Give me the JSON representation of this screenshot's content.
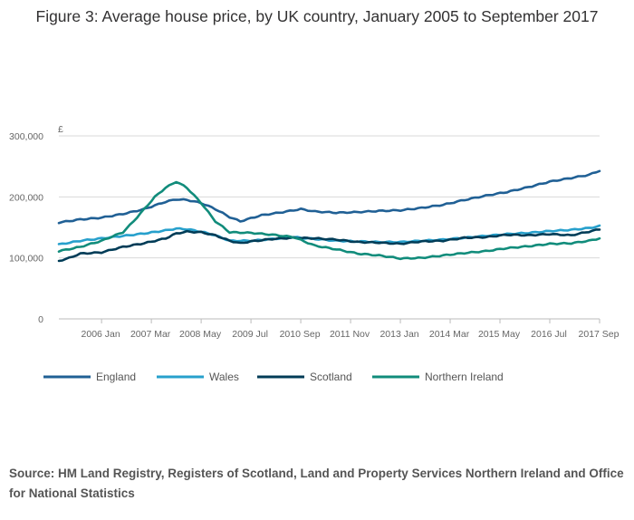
{
  "chart_data": {
    "type": "line",
    "title": "Figure 3: Average house price, by UK country, January 2005 to September 2017",
    "ylabel": "£",
    "ylim": [
      0,
      300000
    ],
    "yticks": [
      0,
      100000,
      200000,
      300000
    ],
    "ytick_labels": [
      "0",
      "100,000",
      "200,000",
      "300,000"
    ],
    "xrange": [
      "2005-01",
      "2017-09"
    ],
    "xtick_labels": [
      "2006 Jan",
      "2007 Mar",
      "2008 May",
      "2009 Jul",
      "2010 Sep",
      "2011 Nov",
      "2013 Jan",
      "2014 Mar",
      "2015 May",
      "2016 Jul",
      "2017 Sep"
    ],
    "xtick_dates": [
      "2006-01",
      "2007-03",
      "2008-05",
      "2009-07",
      "2010-09",
      "2011-11",
      "2013-01",
      "2014-03",
      "2015-05",
      "2016-07",
      "2017-09"
    ],
    "grid": "horizontal",
    "legend_position": "bottom",
    "series": [
      {
        "name": "England",
        "color": "#206095",
        "points": [
          [
            "2005-01",
            158000
          ],
          [
            "2005-07",
            163000
          ],
          [
            "2006-01",
            166000
          ],
          [
            "2006-07",
            172000
          ],
          [
            "2007-01",
            180000
          ],
          [
            "2007-07",
            192000
          ],
          [
            "2007-10",
            196000
          ],
          [
            "2008-01",
            195000
          ],
          [
            "2008-05",
            190000
          ],
          [
            "2008-09",
            180000
          ],
          [
            "2009-01",
            167000
          ],
          [
            "2009-04",
            160000
          ],
          [
            "2009-07",
            165000
          ],
          [
            "2009-10",
            170000
          ],
          [
            "2010-04",
            175000
          ],
          [
            "2010-09",
            180000
          ],
          [
            "2011-01",
            176000
          ],
          [
            "2011-07",
            174000
          ],
          [
            "2012-01",
            175000
          ],
          [
            "2012-07",
            177000
          ],
          [
            "2013-01",
            178000
          ],
          [
            "2013-07",
            182000
          ],
          [
            "2014-01",
            187000
          ],
          [
            "2014-07",
            195000
          ],
          [
            "2015-01",
            202000
          ],
          [
            "2015-07",
            208000
          ],
          [
            "2016-01",
            216000
          ],
          [
            "2016-07",
            225000
          ],
          [
            "2017-01",
            231000
          ],
          [
            "2017-06",
            236000
          ],
          [
            "2017-09",
            243000
          ]
        ]
      },
      {
        "name": "Wales",
        "color": "#27a0cc",
        "points": [
          [
            "2005-01",
            122000
          ],
          [
            "2005-07",
            128000
          ],
          [
            "2006-01",
            132000
          ],
          [
            "2006-07",
            136000
          ],
          [
            "2007-01",
            140000
          ],
          [
            "2007-07",
            145000
          ],
          [
            "2007-10",
            148000
          ],
          [
            "2008-01",
            147000
          ],
          [
            "2008-05",
            143000
          ],
          [
            "2008-09",
            137000
          ],
          [
            "2009-01",
            128000
          ],
          [
            "2009-07",
            128000
          ],
          [
            "2010-01",
            131000
          ],
          [
            "2010-07",
            134000
          ],
          [
            "2011-01",
            131000
          ],
          [
            "2011-07",
            128000
          ],
          [
            "2012-01",
            127000
          ],
          [
            "2012-07",
            126000
          ],
          [
            "2013-01",
            126000
          ],
          [
            "2013-07",
            128000
          ],
          [
            "2014-01",
            130000
          ],
          [
            "2014-07",
            133000
          ],
          [
            "2015-01",
            136000
          ],
          [
            "2015-07",
            139000
          ],
          [
            "2016-01",
            141000
          ],
          [
            "2016-07",
            144000
          ],
          [
            "2017-01",
            146000
          ],
          [
            "2017-06",
            149000
          ],
          [
            "2017-09",
            152000
          ]
        ]
      },
      {
        "name": "Scotland",
        "color": "#003c57",
        "points": [
          [
            "2005-01",
            95000
          ],
          [
            "2005-04",
            100000
          ],
          [
            "2005-07",
            107000
          ],
          [
            "2006-01",
            109000
          ],
          [
            "2006-07",
            118000
          ],
          [
            "2007-01",
            124000
          ],
          [
            "2007-07",
            132000
          ],
          [
            "2007-10",
            140000
          ],
          [
            "2008-01",
            143000
          ],
          [
            "2008-05",
            142000
          ],
          [
            "2008-09",
            137000
          ],
          [
            "2009-01",
            128000
          ],
          [
            "2009-04",
            124000
          ],
          [
            "2009-07",
            127000
          ],
          [
            "2010-01",
            131000
          ],
          [
            "2010-07",
            133000
          ],
          [
            "2011-01",
            132000
          ],
          [
            "2011-07",
            130000
          ],
          [
            "2012-01",
            126000
          ],
          [
            "2012-07",
            125000
          ],
          [
            "2013-01",
            123000
          ],
          [
            "2013-07",
            127000
          ],
          [
            "2014-01",
            128000
          ],
          [
            "2014-07",
            133000
          ],
          [
            "2015-01",
            134000
          ],
          [
            "2015-07",
            138000
          ],
          [
            "2016-01",
            137000
          ],
          [
            "2016-07",
            139000
          ],
          [
            "2017-01",
            137000
          ],
          [
            "2017-06",
            143000
          ],
          [
            "2017-09",
            147000
          ]
        ]
      },
      {
        "name": "Northern Ireland",
        "color": "#118c7b",
        "points": [
          [
            "2005-01",
            111000
          ],
          [
            "2005-07",
            118000
          ],
          [
            "2006-01",
            128000
          ],
          [
            "2006-07",
            142000
          ],
          [
            "2006-10",
            160000
          ],
          [
            "2007-01",
            180000
          ],
          [
            "2007-04",
            200000
          ],
          [
            "2007-07",
            215000
          ],
          [
            "2007-10",
            225000
          ],
          [
            "2008-01",
            215000
          ],
          [
            "2008-05",
            190000
          ],
          [
            "2008-09",
            160000
          ],
          [
            "2009-01",
            142000
          ],
          [
            "2009-07",
            141000
          ],
          [
            "2010-01",
            138000
          ],
          [
            "2010-07",
            134000
          ],
          [
            "2011-01",
            120000
          ],
          [
            "2011-07",
            114000
          ],
          [
            "2012-01",
            107000
          ],
          [
            "2012-07",
            104000
          ],
          [
            "2013-01",
            99000
          ],
          [
            "2013-07",
            100000
          ],
          [
            "2014-01",
            104000
          ],
          [
            "2014-07",
            108000
          ],
          [
            "2015-01",
            111000
          ],
          [
            "2015-07",
            116000
          ],
          [
            "2016-01",
            119000
          ],
          [
            "2016-07",
            123000
          ],
          [
            "2017-01",
            124000
          ],
          [
            "2017-06",
            128000
          ],
          [
            "2017-09",
            132000
          ]
        ]
      }
    ],
    "source": "Source: HM Land Registry, Registers of Scotland, Land and Property Services Northern Ireland and Office for National Statistics"
  }
}
